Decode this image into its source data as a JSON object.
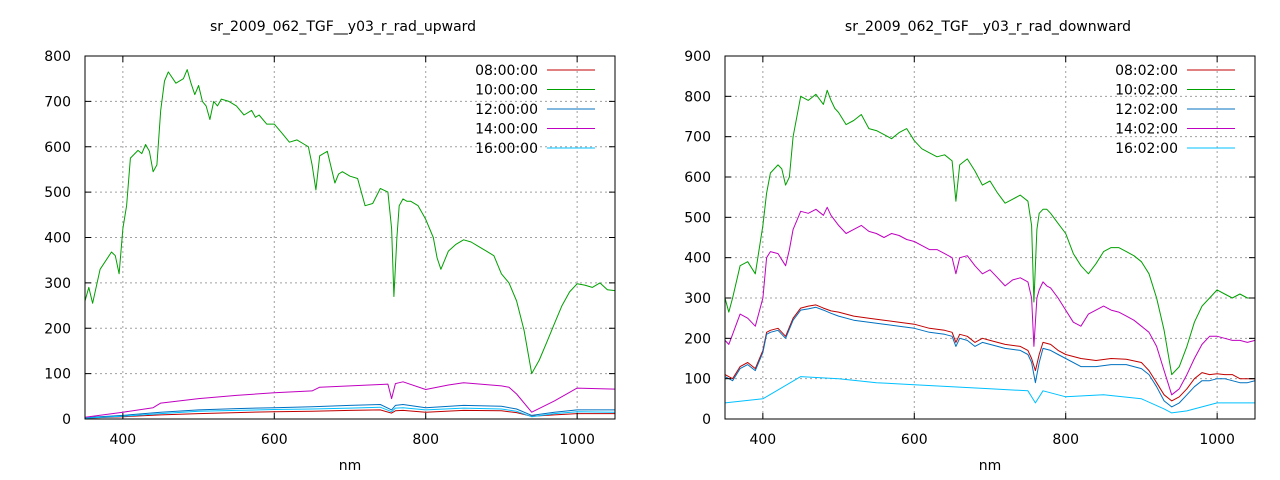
{
  "chart_data": [
    {
      "type": "line",
      "title": "sr_2009_062_TGF__y03_r_rad_upward",
      "xlabel": "nm",
      "ylabel": "",
      "xlim": [
        350,
        1050
      ],
      "ylim": [
        0,
        800
      ],
      "xticks": [
        400,
        600,
        800,
        1000
      ],
      "yticks": [
        0,
        100,
        200,
        300,
        400,
        500,
        600,
        700,
        800
      ],
      "grid": true,
      "legend_position": "top-right",
      "series": [
        {
          "name": "08:00:00",
          "color": "#c00000",
          "x": [
            350,
            400,
            450,
            500,
            550,
            600,
            650,
            700,
            740,
            755,
            760,
            770,
            800,
            850,
            900,
            920,
            940,
            970,
            1000,
            1050
          ],
          "y": [
            2,
            5,
            9,
            12,
            14,
            16,
            17,
            19,
            20,
            13,
            18,
            19,
            15,
            19,
            18,
            14,
            6,
            9,
            12,
            12
          ]
        },
        {
          "name": "10:00:00",
          "color": "#00a000",
          "x": [
            350,
            355,
            360,
            370,
            385,
            390,
            395,
            400,
            405,
            410,
            420,
            425,
            430,
            435,
            440,
            445,
            450,
            455,
            460,
            470,
            480,
            485,
            490,
            495,
            500,
            505,
            510,
            515,
            520,
            525,
            530,
            540,
            550,
            560,
            570,
            575,
            580,
            590,
            600,
            610,
            620,
            630,
            640,
            645,
            650,
            655,
            660,
            670,
            680,
            685,
            690,
            700,
            710,
            720,
            730,
            740,
            750,
            755,
            758,
            762,
            765,
            770,
            775,
            780,
            790,
            800,
            810,
            815,
            820,
            830,
            840,
            850,
            860,
            870,
            880,
            890,
            900,
            910,
            920,
            930,
            940,
            950,
            960,
            970,
            980,
            990,
            1000,
            1010,
            1020,
            1030,
            1040,
            1050
          ],
          "y": [
            260,
            290,
            255,
            330,
            368,
            360,
            320,
            420,
            470,
            575,
            592,
            585,
            605,
            590,
            545,
            560,
            680,
            745,
            765,
            740,
            750,
            770,
            740,
            715,
            735,
            700,
            690,
            660,
            700,
            690,
            705,
            700,
            690,
            670,
            680,
            665,
            670,
            650,
            650,
            630,
            610,
            615,
            605,
            600,
            560,
            505,
            580,
            590,
            520,
            540,
            545,
            535,
            530,
            470,
            475,
            508,
            500,
            420,
            270,
            400,
            470,
            485,
            480,
            480,
            470,
            440,
            400,
            355,
            330,
            370,
            385,
            395,
            390,
            380,
            370,
            360,
            320,
            300,
            260,
            195,
            100,
            130,
            170,
            210,
            250,
            280,
            298,
            295,
            290,
            300,
            285,
            283
          ]
        },
        {
          "name": "12:00:00",
          "color": "#0070c0",
          "x": [
            350,
            400,
            450,
            500,
            550,
            600,
            650,
            700,
            740,
            755,
            760,
            770,
            800,
            850,
            900,
            920,
            940,
            970,
            1000,
            1050
          ],
          "y": [
            3,
            8,
            15,
            20,
            23,
            25,
            27,
            30,
            32,
            20,
            30,
            32,
            25,
            30,
            28,
            22,
            8,
            15,
            20,
            20
          ]
        },
        {
          "name": "14:00:00",
          "color": "#c000c0",
          "x": [
            350,
            400,
            440,
            450,
            500,
            550,
            600,
            650,
            660,
            700,
            740,
            750,
            755,
            760,
            765,
            770,
            800,
            830,
            850,
            900,
            910,
            920,
            940,
            970,
            1000,
            1050
          ],
          "y": [
            4,
            15,
            25,
            35,
            45,
            52,
            58,
            62,
            70,
            73,
            76,
            77,
            45,
            78,
            80,
            82,
            65,
            75,
            80,
            73,
            70,
            55,
            15,
            40,
            68,
            66
          ]
        },
        {
          "name": "16:00:00",
          "color": "#00c0ff",
          "x": [
            350,
            400,
            450,
            500,
            550,
            600,
            650,
            700,
            740,
            755,
            760,
            770,
            800,
            850,
            900,
            920,
            940,
            970,
            1000,
            1050
          ],
          "y": [
            2,
            6,
            12,
            17,
            19,
            21,
            22,
            24,
            26,
            16,
            24,
            25,
            20,
            24,
            22,
            17,
            5,
            12,
            16,
            15
          ]
        }
      ]
    },
    {
      "type": "line",
      "title": "sr_2009_062_TGF__y03_r_rad_downward",
      "xlabel": "nm",
      "ylabel": "",
      "xlim": [
        350,
        1050
      ],
      "ylim": [
        0,
        900
      ],
      "xticks": [
        400,
        600,
        800,
        1000
      ],
      "yticks": [
        0,
        100,
        200,
        300,
        400,
        500,
        600,
        700,
        800,
        900
      ],
      "grid": true,
      "legend_position": "top-right",
      "series": [
        {
          "name": "08:02:00",
          "color": "#c00000",
          "x": [
            350,
            360,
            370,
            380,
            390,
            400,
            405,
            410,
            420,
            430,
            440,
            450,
            460,
            470,
            480,
            490,
            500,
            520,
            540,
            560,
            580,
            600,
            620,
            640,
            650,
            655,
            660,
            670,
            680,
            690,
            700,
            720,
            740,
            750,
            755,
            760,
            765,
            770,
            780,
            790,
            800,
            820,
            840,
            860,
            880,
            900,
            910,
            920,
            930,
            940,
            950,
            960,
            970,
            980,
            990,
            1000,
            1010,
            1020,
            1030,
            1040,
            1050
          ],
          "y": [
            110,
            100,
            130,
            140,
            125,
            170,
            215,
            220,
            225,
            205,
            250,
            275,
            280,
            283,
            275,
            268,
            265,
            255,
            250,
            245,
            240,
            235,
            225,
            220,
            215,
            190,
            210,
            205,
            190,
            200,
            195,
            185,
            180,
            170,
            150,
            120,
            160,
            190,
            185,
            170,
            160,
            150,
            145,
            150,
            148,
            140,
            120,
            90,
            60,
            45,
            55,
            75,
            100,
            115,
            110,
            112,
            110,
            110,
            100,
            100,
            100
          ]
        },
        {
          "name": "10:02:00",
          "color": "#00a000",
          "x": [
            350,
            355,
            360,
            370,
            380,
            390,
            400,
            405,
            410,
            420,
            425,
            430,
            435,
            440,
            450,
            460,
            470,
            480,
            485,
            490,
            495,
            500,
            510,
            520,
            530,
            540,
            550,
            560,
            570,
            580,
            590,
            600,
            610,
            620,
            630,
            640,
            650,
            655,
            660,
            670,
            680,
            690,
            700,
            710,
            720,
            730,
            740,
            750,
            755,
            758,
            762,
            765,
            770,
            775,
            780,
            790,
            800,
            810,
            820,
            830,
            840,
            850,
            860,
            870,
            880,
            890,
            900,
            910,
            920,
            930,
            940,
            950,
            960,
            970,
            980,
            990,
            1000,
            1010,
            1020,
            1030,
            1040,
            1050
          ],
          "y": [
            300,
            265,
            300,
            380,
            390,
            360,
            480,
            560,
            610,
            630,
            620,
            580,
            600,
            700,
            800,
            790,
            805,
            780,
            815,
            790,
            770,
            760,
            730,
            740,
            755,
            720,
            715,
            705,
            695,
            710,
            720,
            690,
            670,
            660,
            650,
            655,
            640,
            540,
            630,
            645,
            615,
            580,
            590,
            560,
            535,
            545,
            555,
            540,
            480,
            290,
            470,
            510,
            520,
            520,
            510,
            485,
            460,
            410,
            380,
            360,
            385,
            415,
            425,
            425,
            415,
            405,
            390,
            360,
            300,
            220,
            110,
            130,
            180,
            240,
            280,
            300,
            320,
            310,
            300,
            310,
            300,
            300
          ]
        },
        {
          "name": "12:02:00",
          "color": "#0070c0",
          "x": [
            350,
            360,
            370,
            380,
            390,
            400,
            405,
            410,
            420,
            430,
            440,
            450,
            460,
            470,
            480,
            490,
            500,
            520,
            540,
            560,
            580,
            600,
            620,
            640,
            650,
            655,
            660,
            670,
            680,
            690,
            700,
            720,
            740,
            750,
            755,
            760,
            765,
            770,
            780,
            790,
            800,
            820,
            840,
            860,
            880,
            900,
            910,
            920,
            930,
            940,
            950,
            960,
            970,
            980,
            990,
            1000,
            1010,
            1020,
            1030,
            1040,
            1050
          ],
          "y": [
            105,
            95,
            125,
            135,
            120,
            165,
            210,
            215,
            220,
            200,
            245,
            270,
            273,
            277,
            270,
            262,
            255,
            245,
            240,
            235,
            230,
            225,
            215,
            210,
            205,
            180,
            200,
            195,
            180,
            190,
            185,
            175,
            170,
            160,
            140,
            90,
            140,
            175,
            170,
            160,
            150,
            130,
            130,
            135,
            135,
            125,
            110,
            80,
            45,
            30,
            40,
            60,
            80,
            95,
            95,
            100,
            100,
            95,
            90,
            90,
            95
          ]
        },
        {
          "name": "14:02:00",
          "color": "#c000c0",
          "x": [
            350,
            355,
            360,
            370,
            380,
            390,
            400,
            405,
            410,
            420,
            425,
            430,
            435,
            440,
            450,
            460,
            470,
            480,
            485,
            490,
            500,
            510,
            520,
            530,
            540,
            550,
            560,
            570,
            580,
            590,
            600,
            610,
            620,
            630,
            640,
            650,
            655,
            660,
            670,
            680,
            690,
            700,
            710,
            720,
            730,
            740,
            750,
            755,
            758,
            762,
            765,
            770,
            775,
            780,
            790,
            800,
            810,
            820,
            830,
            840,
            850,
            860,
            870,
            880,
            890,
            900,
            910,
            920,
            930,
            940,
            950,
            960,
            970,
            980,
            990,
            1000,
            1010,
            1020,
            1030,
            1040,
            1050
          ],
          "y": [
            195,
            185,
            210,
            260,
            250,
            230,
            300,
            400,
            415,
            410,
            395,
            380,
            420,
            470,
            515,
            510,
            520,
            505,
            525,
            505,
            480,
            460,
            470,
            480,
            465,
            460,
            450,
            460,
            455,
            445,
            440,
            430,
            420,
            420,
            410,
            400,
            360,
            400,
            405,
            380,
            360,
            370,
            350,
            330,
            345,
            350,
            340,
            300,
            180,
            300,
            320,
            340,
            330,
            325,
            300,
            270,
            240,
            230,
            260,
            270,
            280,
            270,
            265,
            255,
            245,
            230,
            215,
            180,
            120,
            60,
            75,
            110,
            150,
            185,
            205,
            205,
            200,
            195,
            195,
            190,
            195
          ]
        },
        {
          "name": "16:02:00",
          "color": "#00c0ff",
          "x": [
            350,
            400,
            450,
            500,
            550,
            600,
            650,
            700,
            750,
            760,
            770,
            800,
            850,
            900,
            930,
            940,
            960,
            1000,
            1050
          ],
          "y": [
            40,
            50,
            105,
            100,
            90,
            85,
            80,
            75,
            70,
            40,
            70,
            55,
            60,
            50,
            25,
            15,
            20,
            40,
            40
          ]
        }
      ]
    }
  ]
}
